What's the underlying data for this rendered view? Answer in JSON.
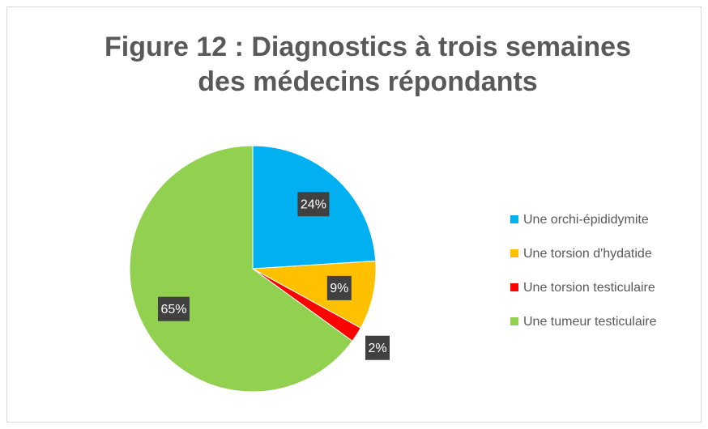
{
  "chart_data": {
    "type": "pie",
    "title": [
      "Figure 12 : Diagnostics à trois semaines",
      "des médecins répondants"
    ],
    "categories": [
      "Une orchi-épididymite",
      "Une torsion d'hydatide",
      "Une torsion testiculaire",
      "Une tumeur testiculaire"
    ],
    "values": [
      24,
      9,
      2,
      65
    ],
    "value_labels": [
      "24%",
      "9%",
      "2%",
      "65%"
    ],
    "colors": [
      "#00b0f0",
      "#ffc000",
      "#ff0000",
      "#92d050"
    ],
    "legend": "right"
  }
}
